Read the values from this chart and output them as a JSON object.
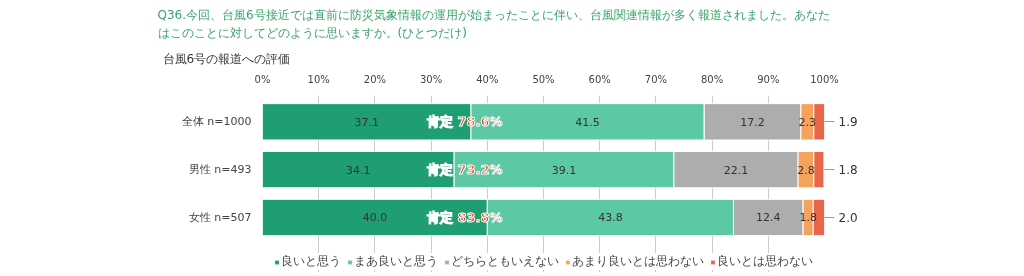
{
  "chart_data": {
    "type": "bar",
    "orientation": "horizontal",
    "stacked": true,
    "title": "Q36.今回、台風6号接近では直前に防災気象情報の運用が始まったことに伴い、台風関連情報が多く報道されました。あなたはこのことに対してどのように思いますか。(ひとつだけ)",
    "subtitle": "台風6号の報道への評価",
    "categories": [
      "全体 n=1000",
      "男性 n=493",
      "女性 n=507"
    ],
    "series": [
      {
        "name": "良いと思う",
        "color": "#1f9e74",
        "values": [
          37.1,
          34.1,
          40.0
        ],
        "value_labels": [
          "37.1",
          "34.1",
          "40.0"
        ]
      },
      {
        "name": "まあ良いと思う",
        "color": "#5cc9a4",
        "values": [
          41.5,
          39.1,
          43.8
        ],
        "value_labels": [
          "41.5",
          "39.1",
          "43.8"
        ]
      },
      {
        "name": "どちらともいえない",
        "color": "#adadad",
        "values": [
          17.2,
          22.1,
          12.4
        ],
        "value_labels": [
          "17.2",
          "22.1",
          "12.4"
        ]
      },
      {
        "name": "あまり良いとは思わない",
        "color": "#f5a35c",
        "values": [
          2.3,
          2.8,
          1.8
        ],
        "value_labels": [
          "2.3",
          "2.8",
          "1.8"
        ]
      },
      {
        "name": "良いとは思わない",
        "color": "#e8664a",
        "values": [
          1.9,
          1.8,
          2.0
        ],
        "value_labels": [
          "1.9",
          "1.8",
          "2.0"
        ]
      }
    ],
    "annotations": [
      "肯定 78.6%",
      "肯定 73.2%",
      "肯定 83.8%"
    ],
    "xlim": [
      0,
      100
    ],
    "xticks": [
      {
        "value": 0,
        "label": "0%"
      },
      {
        "value": 10,
        "label": "10%"
      },
      {
        "value": 20,
        "label": "20%"
      },
      {
        "value": 30,
        "label": "30%"
      },
      {
        "value": 40,
        "label": "40%"
      },
      {
        "value": 50,
        "label": "50%"
      },
      {
        "value": 60,
        "label": "60%"
      },
      {
        "value": 70,
        "label": "70%"
      },
      {
        "value": 80,
        "label": "80%"
      },
      {
        "value": 90,
        "label": "90%"
      },
      {
        "value": 100,
        "label": "100%"
      }
    ],
    "grid": "x",
    "legend": "bottom"
  }
}
